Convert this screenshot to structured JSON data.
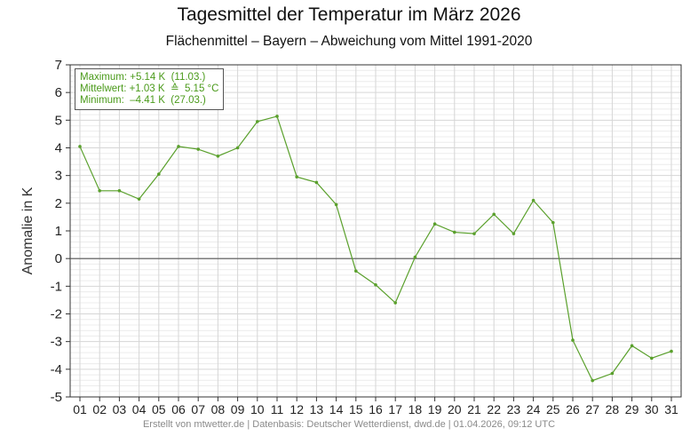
{
  "title": "Tagesmittel der Temperatur im März 2026",
  "subtitle": "Flächenmittel – Bayern – Abweichung vom Mittel 1991-2020",
  "footer": "Erstellt von mtwetter.de | Datenbasis: Deutscher Wetterdienst, dwd.de | 01.04.2026, 09:12 UTC",
  "stats": {
    "max": "Maximum: +5.14 K  (11.03.)",
    "mean": "Mittelwert: +1.03 K  ≙  5.15 °C",
    "min": "Minimum:  –4.41 K  (27.03.)"
  },
  "colors": {
    "line": "#5aa02c",
    "zero": "#555555",
    "grid_major": "#d6d6d6",
    "grid_minor": "#ececec"
  },
  "chart_data": {
    "type": "line",
    "xlabel": "",
    "ylabel": "Anomalie in K",
    "ylim": [
      -5,
      7
    ],
    "yticks": [
      "-5",
      "-4",
      "-3",
      "-2",
      "-1",
      "0",
      "1",
      "2",
      "3",
      "4",
      "5",
      "6",
      "7"
    ],
    "categories": [
      "01",
      "02",
      "03",
      "04",
      "05",
      "06",
      "07",
      "08",
      "09",
      "10",
      "11",
      "12",
      "13",
      "14",
      "15",
      "16",
      "17",
      "18",
      "19",
      "20",
      "21",
      "22",
      "23",
      "24",
      "25",
      "26",
      "27",
      "28",
      "29",
      "30",
      "31"
    ],
    "values": [
      4.05,
      2.45,
      2.45,
      2.15,
      3.05,
      4.05,
      3.95,
      3.7,
      4.0,
      4.95,
      5.14,
      2.95,
      2.75,
      1.95,
      -0.45,
      -0.95,
      -1.6,
      0.05,
      1.25,
      0.95,
      0.9,
      1.6,
      0.9,
      2.1,
      1.3,
      -2.95,
      -4.41,
      -4.15,
      -3.15,
      -3.6,
      -3.35
    ],
    "grid": true
  }
}
